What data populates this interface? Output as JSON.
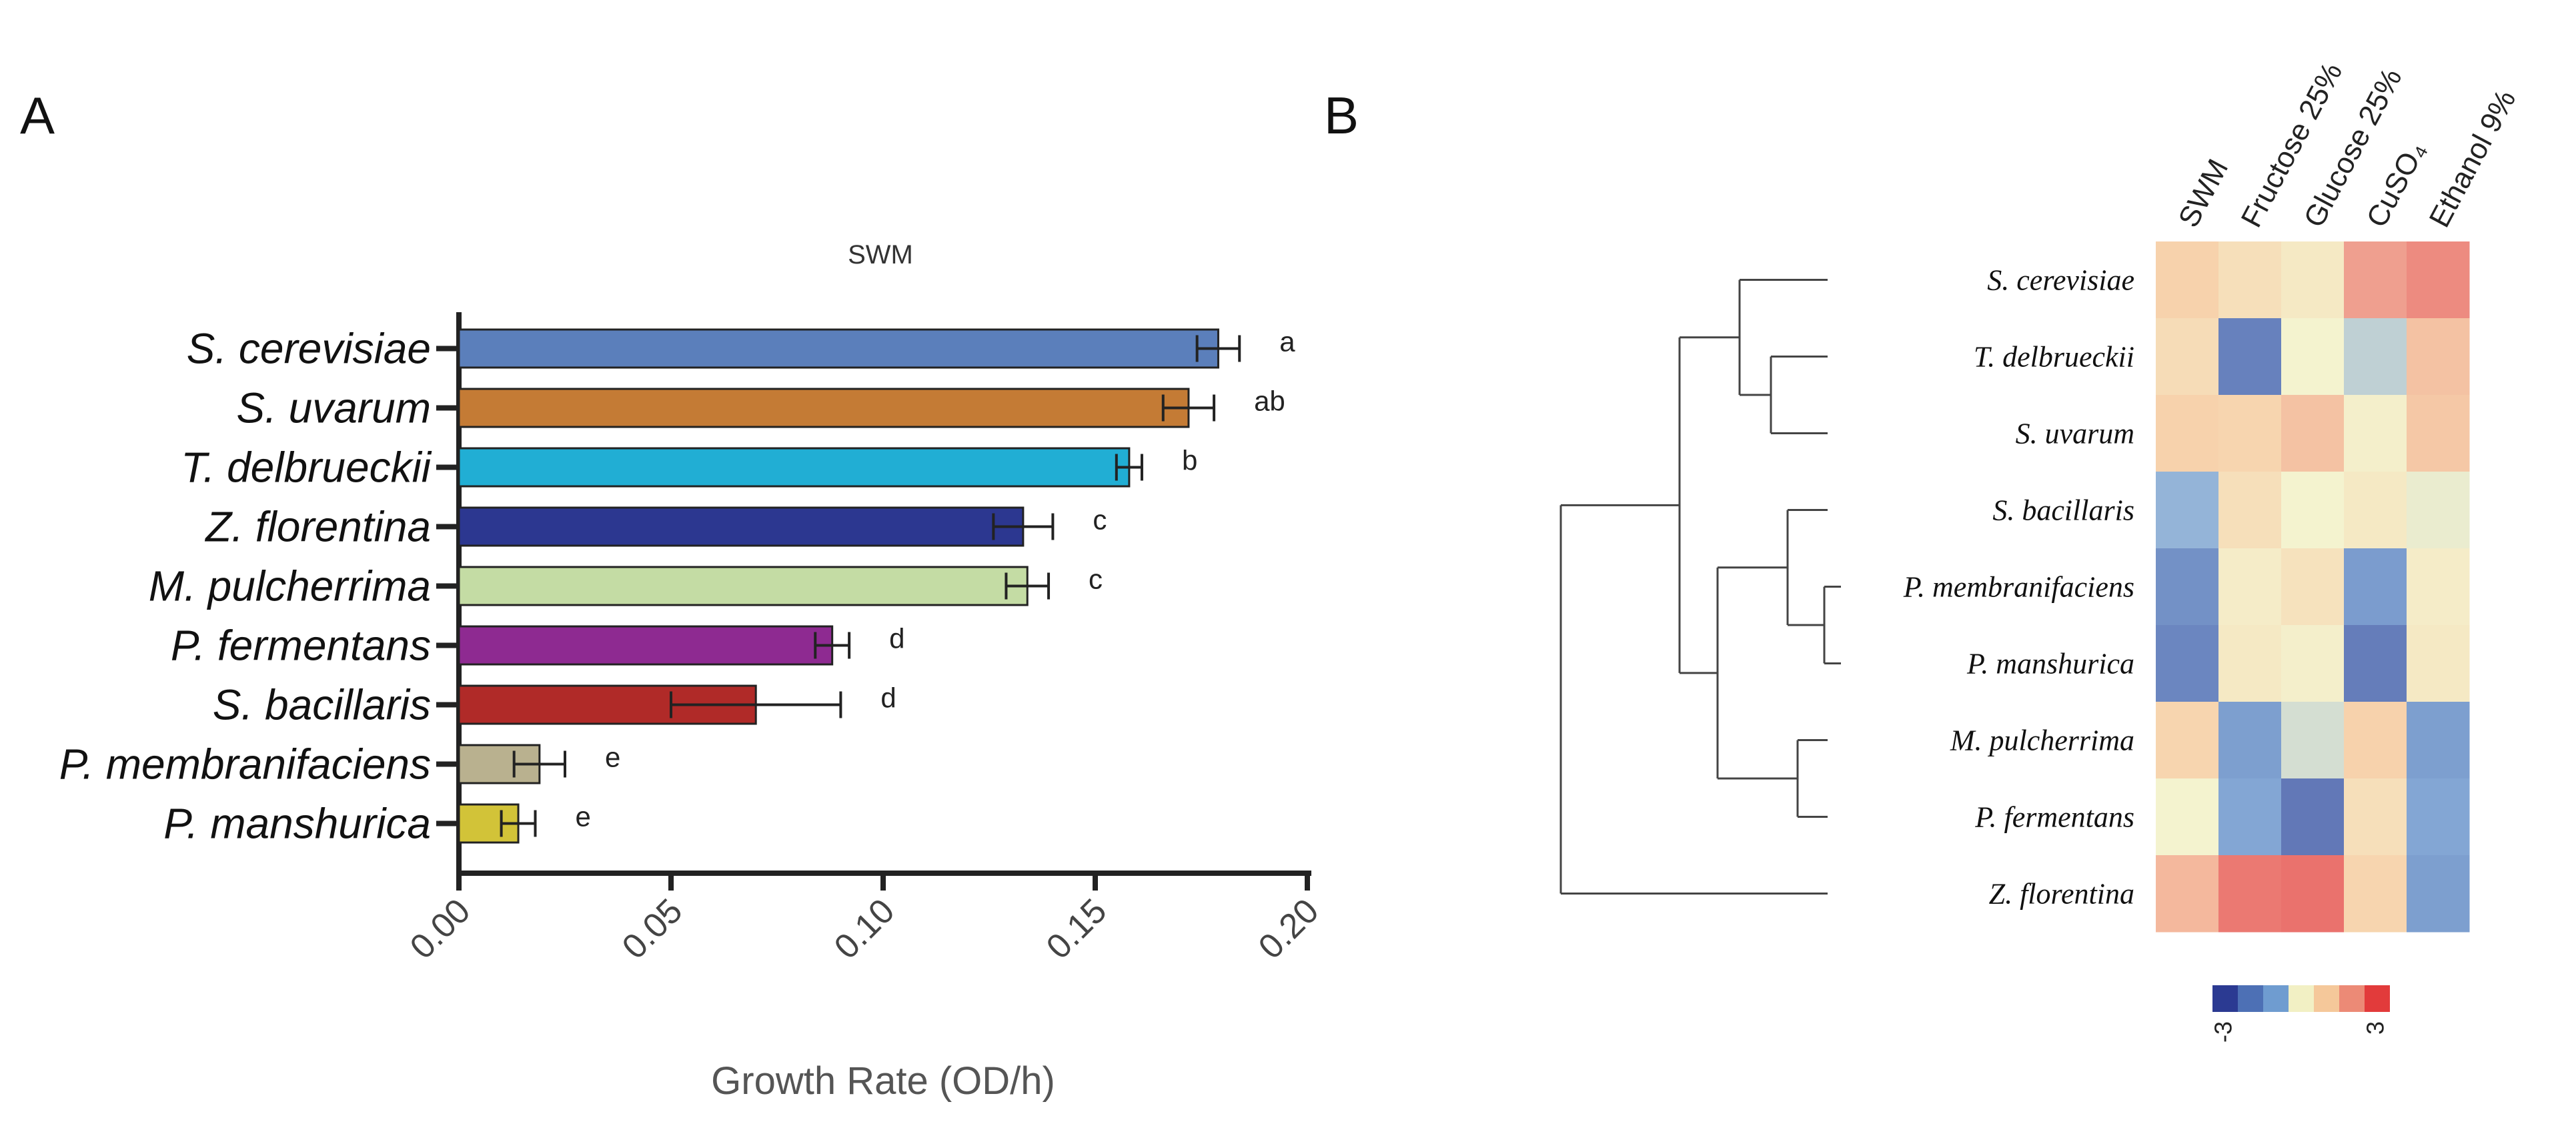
{
  "panels": {
    "a_label": "A",
    "b_label": "B"
  },
  "chart_data": [
    {
      "type": "bar",
      "orientation": "horizontal",
      "title": "SWM",
      "xlabel": "Growth Rate (OD/h)",
      "ylabel": "",
      "xlim": [
        0,
        0.2
      ],
      "xticks": [
        "0.00",
        "0.05",
        "0.10",
        "0.15",
        "0.20"
      ],
      "categories": [
        "S. cerevisiae",
        "S. uvarum",
        "T. delbrueckii",
        "Z. florentina",
        "M. pulcherrima",
        "P. fermentans",
        "S. bacillaris",
        "P. membranifaciens",
        "P. manshurica"
      ],
      "values": [
        0.179,
        0.172,
        0.158,
        0.133,
        0.134,
        0.088,
        0.07,
        0.019,
        0.014
      ],
      "errors": [
        0.005,
        0.006,
        0.003,
        0.007,
        0.005,
        0.004,
        0.02,
        0.006,
        0.004
      ],
      "significance": [
        "a",
        "ab",
        "b",
        "c",
        "c",
        "d",
        "d",
        "e",
        "e"
      ],
      "colors": [
        "#5b7fbb",
        "#c47b35",
        "#21aed4",
        "#2c3790",
        "#c4dca4",
        "#8e2a91",
        "#b02a28",
        "#b9b18f",
        "#d2c338"
      ]
    },
    {
      "type": "heatmap",
      "columns": [
        "SWM",
        "Fructose 25%",
        "Glucose 25%",
        "CuSO₄",
        "Ethanol 9%"
      ],
      "rows": [
        "S. cerevisiae",
        "T. delbrueckii",
        "S. uvarum",
        "S. bacillaris",
        "P. membranifaciens",
        "P. manshurica",
        "M. pulcherrima",
        "P. fermentans",
        "Z. florentina"
      ],
      "values": [
        [
          1.0,
          0.6,
          0.3,
          2.0,
          2.3
        ],
        [
          0.7,
          -2.2,
          0.0,
          -0.5,
          1.3
        ],
        [
          1.0,
          0.9,
          1.3,
          0.1,
          1.2
        ],
        [
          -0.9,
          0.6,
          0.0,
          0.3,
          -0.1
        ],
        [
          -1.8,
          0.2,
          0.5,
          -1.5,
          0.2
        ],
        [
          -2.1,
          0.3,
          0.1,
          -2.3,
          0.3
        ],
        [
          0.9,
          -1.4,
          -0.3,
          1.0,
          -1.4
        ],
        [
          0.0,
          -1.2,
          -2.4,
          0.6,
          -1.2
        ],
        [
          1.5,
          2.6,
          2.7,
          0.9,
          -1.4
        ]
      ],
      "scale": {
        "min": -3,
        "max": 3,
        "min_label": "-3",
        "max_label": "3",
        "colors": [
          "#2b3a92",
          "#4d70b5",
          "#6f9cd0",
          "#f2f0c4",
          "#f5c89a",
          "#ec8a76",
          "#e23b3b"
        ]
      }
    }
  ]
}
